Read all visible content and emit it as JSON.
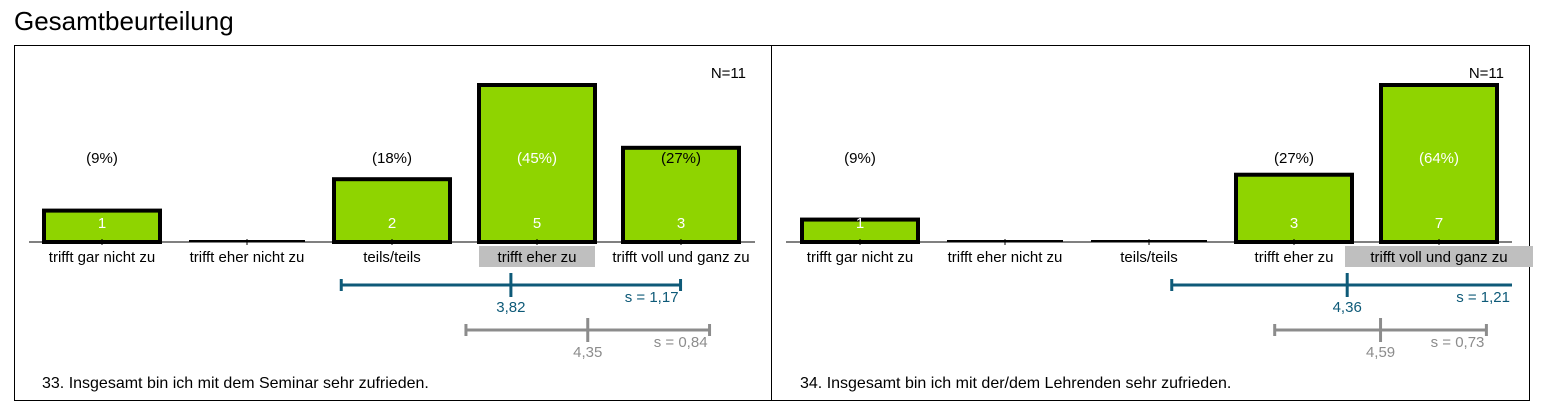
{
  "page": {
    "title": "Gesamtbeurteilung"
  },
  "colors": {
    "bar": "#8fd400",
    "mean": "#0e5a78",
    "reference": "#8c8c8c",
    "highlight": "#bfbfbf"
  },
  "chart_data": [
    {
      "type": "bar",
      "title": "33. Insgesamt bin ich mit dem Seminar sehr zufrieden.",
      "n_label": "N=11",
      "categories": [
        "trifft gar nicht zu",
        "trifft eher nicht zu",
        "teils/teils",
        "trifft eher zu",
        "trifft voll und ganz zu"
      ],
      "values": [
        1,
        0,
        2,
        5,
        3
      ],
      "percent_labels": [
        "(9%)",
        "",
        "(18%)",
        "(45%)",
        "(27%)"
      ],
      "value_labels": [
        "1",
        "",
        "2",
        "5",
        "3"
      ],
      "highlighted_category": "trifft eher zu",
      "mean": {
        "value": 3.82,
        "label": "3,82",
        "sd": 1.17,
        "sd_label": "s = 1,17"
      },
      "reference": {
        "value": 4.35,
        "label": "4,35",
        "sd": 0.84,
        "sd_label": "s = 0,84"
      },
      "ylim": [
        0,
        5
      ]
    },
    {
      "type": "bar",
      "title": "34. Insgesamt bin ich mit der/dem Lehrenden sehr zufrieden.",
      "n_label": "N=11",
      "categories": [
        "trifft gar nicht zu",
        "trifft eher nicht zu",
        "teils/teils",
        "trifft eher zu",
        "trifft voll und ganz zu"
      ],
      "values": [
        1,
        0,
        0,
        3,
        7
      ],
      "percent_labels": [
        "(9%)",
        "",
        "",
        "(27%)",
        "(64%)"
      ],
      "value_labels": [
        "1",
        "",
        "",
        "3",
        "7"
      ],
      "highlighted_category": "trifft voll und ganz zu",
      "mean": {
        "value": 4.36,
        "label": "4,36",
        "sd": 1.21,
        "sd_label": "s = 1,21"
      },
      "reference": {
        "value": 4.59,
        "label": "4,59",
        "sd": 0.73,
        "sd_label": "s = 0,73"
      },
      "ylim": [
        0,
        7
      ]
    }
  ]
}
